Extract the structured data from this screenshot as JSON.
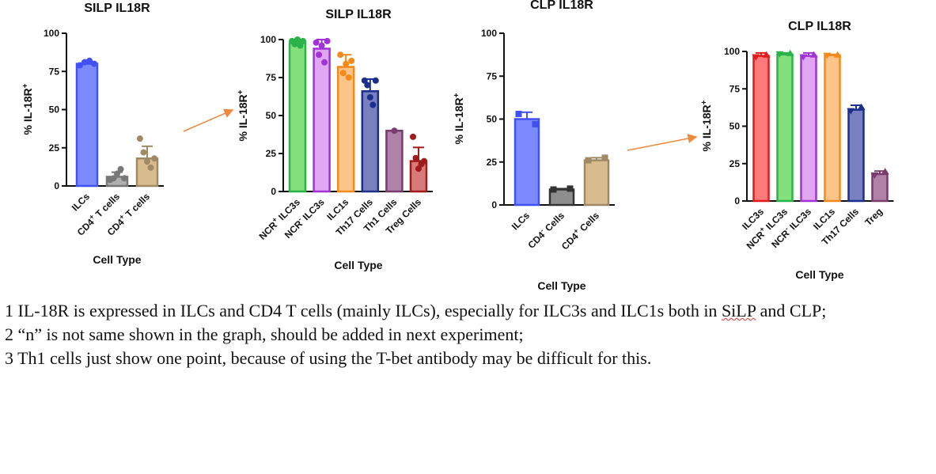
{
  "chart_data": [
    {
      "type": "bar",
      "title": "SILP IL18R",
      "xlabel": "Cell Type",
      "ylabel": "% IL-18R",
      "ylabel_sup": "+",
      "ylim": [
        0,
        100
      ],
      "yticks": [
        0,
        25,
        50,
        75,
        100
      ],
      "categories": [
        {
          "text": "ILCs"
        },
        {
          "text": "CD4 T cells",
          "sup": "+",
          "sup_after": 3
        },
        {
          "text": "CD4 T cells",
          "sup": "+",
          "sup_after": 3
        }
      ],
      "values": [
        80,
        6,
        18
      ],
      "errors": [
        1.5,
        3,
        8
      ],
      "points": [
        [
          79,
          81,
          82,
          80
        ],
        [
          4,
          5,
          8,
          11,
          5
        ],
        [
          31,
          22,
          16,
          12,
          18
        ]
      ],
      "colors": [
        "#4251f5",
        "#777777",
        "#a08a66"
      ],
      "fills": [
        "#7b8afc",
        "#b0b0b0",
        "#d9bc8e"
      ]
    },
    {
      "type": "bar",
      "title": "SILP IL18R",
      "xlabel": "Cell Type",
      "ylabel": "% IL-18R",
      "ylabel_sup": "+",
      "ylim": [
        0,
        100
      ],
      "yticks": [
        0,
        25,
        50,
        75,
        100
      ],
      "categories": [
        {
          "text": "NCR ILC3s",
          "sup": "+",
          "sup_after": 3
        },
        {
          "text": "NCR ILC3s",
          "sup": "-",
          "sup_after": 3
        },
        {
          "text": "ILC1s"
        },
        {
          "text": "Th17 Cells"
        },
        {
          "text": "Th1 Cells"
        },
        {
          "text": "Treg Cells"
        }
      ],
      "values": [
        98,
        94,
        82,
        66,
        40,
        20
      ],
      "errors": [
        2,
        6,
        8,
        8,
        0,
        9
      ],
      "points": [
        [
          99,
          97,
          100,
          96,
          99
        ],
        [
          98,
          90,
          96,
          85,
          99
        ],
        [
          90,
          78,
          84,
          75,
          86
        ],
        [
          73,
          70,
          62,
          57,
          73
        ],
        [
          40
        ],
        [
          36,
          22,
          15,
          18,
          20
        ]
      ],
      "colors": [
        "#29b34a",
        "#a133d6",
        "#f38a1a",
        "#1c2f8c",
        "#7a3b6d",
        "#a01b1b"
      ],
      "fills": [
        "#83e07a",
        "#e0a6f2",
        "#ffc48a",
        "#7880c0",
        "#b082a8",
        "#d97a7a"
      ]
    },
    {
      "type": "bar",
      "title": "CLP IL18R",
      "xlabel": "Cell Type",
      "ylabel": "% IL-18R",
      "ylabel_sup": "+",
      "ylim": [
        0,
        100
      ],
      "yticks": [
        0,
        25,
        50,
        75,
        100
      ],
      "categories": [
        {
          "text": "ILCs"
        },
        {
          "text": "CD4 Cells",
          "sup": "-",
          "sup_after": 3
        },
        {
          "text": "CD4 Cells",
          "sup": "+",
          "sup_after": 3
        }
      ],
      "values": [
        50,
        9,
        26
      ],
      "errors": [
        4,
        0.5,
        1.5
      ],
      "points": [
        [
          53,
          47
        ],
        [
          9,
          9.5
        ],
        [
          26,
          27.5
        ]
      ],
      "colors": [
        "#4251f5",
        "#333333",
        "#a08a66"
      ],
      "fills": [
        "#7b8afc",
        "#8e8e8e",
        "#d9bc8e"
      ]
    },
    {
      "type": "bar",
      "title": "CLP IL18R",
      "xlabel": "Cell Type",
      "ylabel": "% IL-18R",
      "ylabel_sup": "+",
      "ylim": [
        0,
        100
      ],
      "yticks": [
        0,
        25,
        50,
        75,
        100
      ],
      "categories": [
        {
          "text": "ILC3s"
        },
        {
          "text": "NCR ILC3s",
          "sup": "+",
          "sup_after": 3
        },
        {
          "text": "NCR ILC3s",
          "sup": "-",
          "sup_after": 3
        },
        {
          "text": "ILC1s"
        },
        {
          "text": "Th17 Cells"
        },
        {
          "text": "Treg"
        }
      ],
      "values": [
        97,
        98,
        97,
        97.5,
        61,
        18
      ],
      "errors": [
        2,
        1,
        2,
        0.5,
        3,
        2
      ],
      "points": [
        [
          96,
          98
        ],
        [
          98,
          99
        ],
        [
          96,
          98
        ],
        [
          97,
          98
        ],
        [
          60,
          63
        ],
        [
          17,
          20
        ]
      ],
      "colors": [
        "#e01b1b",
        "#29b34a",
        "#a133d6",
        "#f38a1a",
        "#1c2f8c",
        "#7a3b6d"
      ],
      "fills": [
        "#ff7a7a",
        "#83e07a",
        "#e0a6f2",
        "#ffc48a",
        "#7880c0",
        "#b082a8"
      ]
    }
  ],
  "notes": {
    "line1_a": "1 IL-18R is expressed in ILCs and CD4 T cells (mainly ILCs), especially for ILC3s and ILC1s both in ",
    "line1_b": "SiLP",
    "line1_c": " and CLP;",
    "line2": "2 “n” is not same shown in the graph, should be added  in next experiment;",
    "line3": "3 Th1 cells just show one point, because of using the T-bet antibody may be difficult for this."
  },
  "arrow_color": "#ee8a3c"
}
